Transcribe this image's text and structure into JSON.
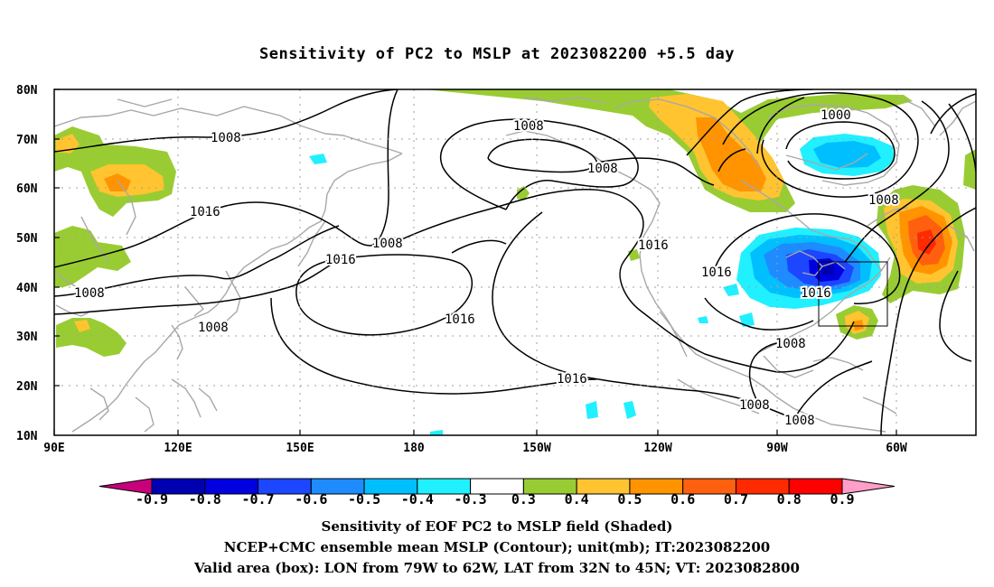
{
  "title": "Sensitivity of PC2 to MSLP at 2023082200 +5.5 day",
  "map": {
    "lon_labels": [
      "90E",
      "120E",
      "150E",
      "180",
      "150W",
      "120W",
      "90W",
      "60W"
    ],
    "lat_labels": [
      "80N",
      "70N",
      "60N",
      "50N",
      "40N",
      "30N",
      "20N",
      "10N"
    ],
    "box": {
      "lon_from": "79W",
      "lon_to": "62W",
      "lat_from": "32N",
      "lat_to": "45N"
    },
    "contour_labels": [
      "1008",
      "1008",
      "1016",
      "1008",
      "1016",
      "1008",
      "1008",
      "1016",
      "1000",
      "1008",
      "1016",
      "1016",
      "1016",
      "1008",
      "1008",
      "1008",
      "1016"
    ]
  },
  "colorbar": {
    "labels": [
      "-0.9",
      "-0.8",
      "-0.7",
      "-0.6",
      "-0.5",
      "-0.4",
      "-0.3",
      "0.3",
      "0.4",
      "0.5",
      "0.6",
      "0.7",
      "0.8",
      "0.9"
    ],
    "colors": [
      "#c8007c",
      "#0000b3",
      "#0000e0",
      "#1c46ff",
      "#1e8cff",
      "#00bfff",
      "#20f0ff",
      "#ffffff",
      "#99cc33",
      "#ffc430",
      "#ff9400",
      "#ff6010",
      "#ff2a00",
      "#ff0000",
      "#ff9ec8"
    ]
  },
  "captions": [
    "Sensitivity of EOF PC2 to MSLP field (Shaded)",
    "NCEP+CMC ensemble mean MSLP (Contour); unit(mb); IT:2023082200",
    "Valid area (box): LON from 79W to 62W, LAT from 32N to 45N; VT: 2023082800"
  ]
}
